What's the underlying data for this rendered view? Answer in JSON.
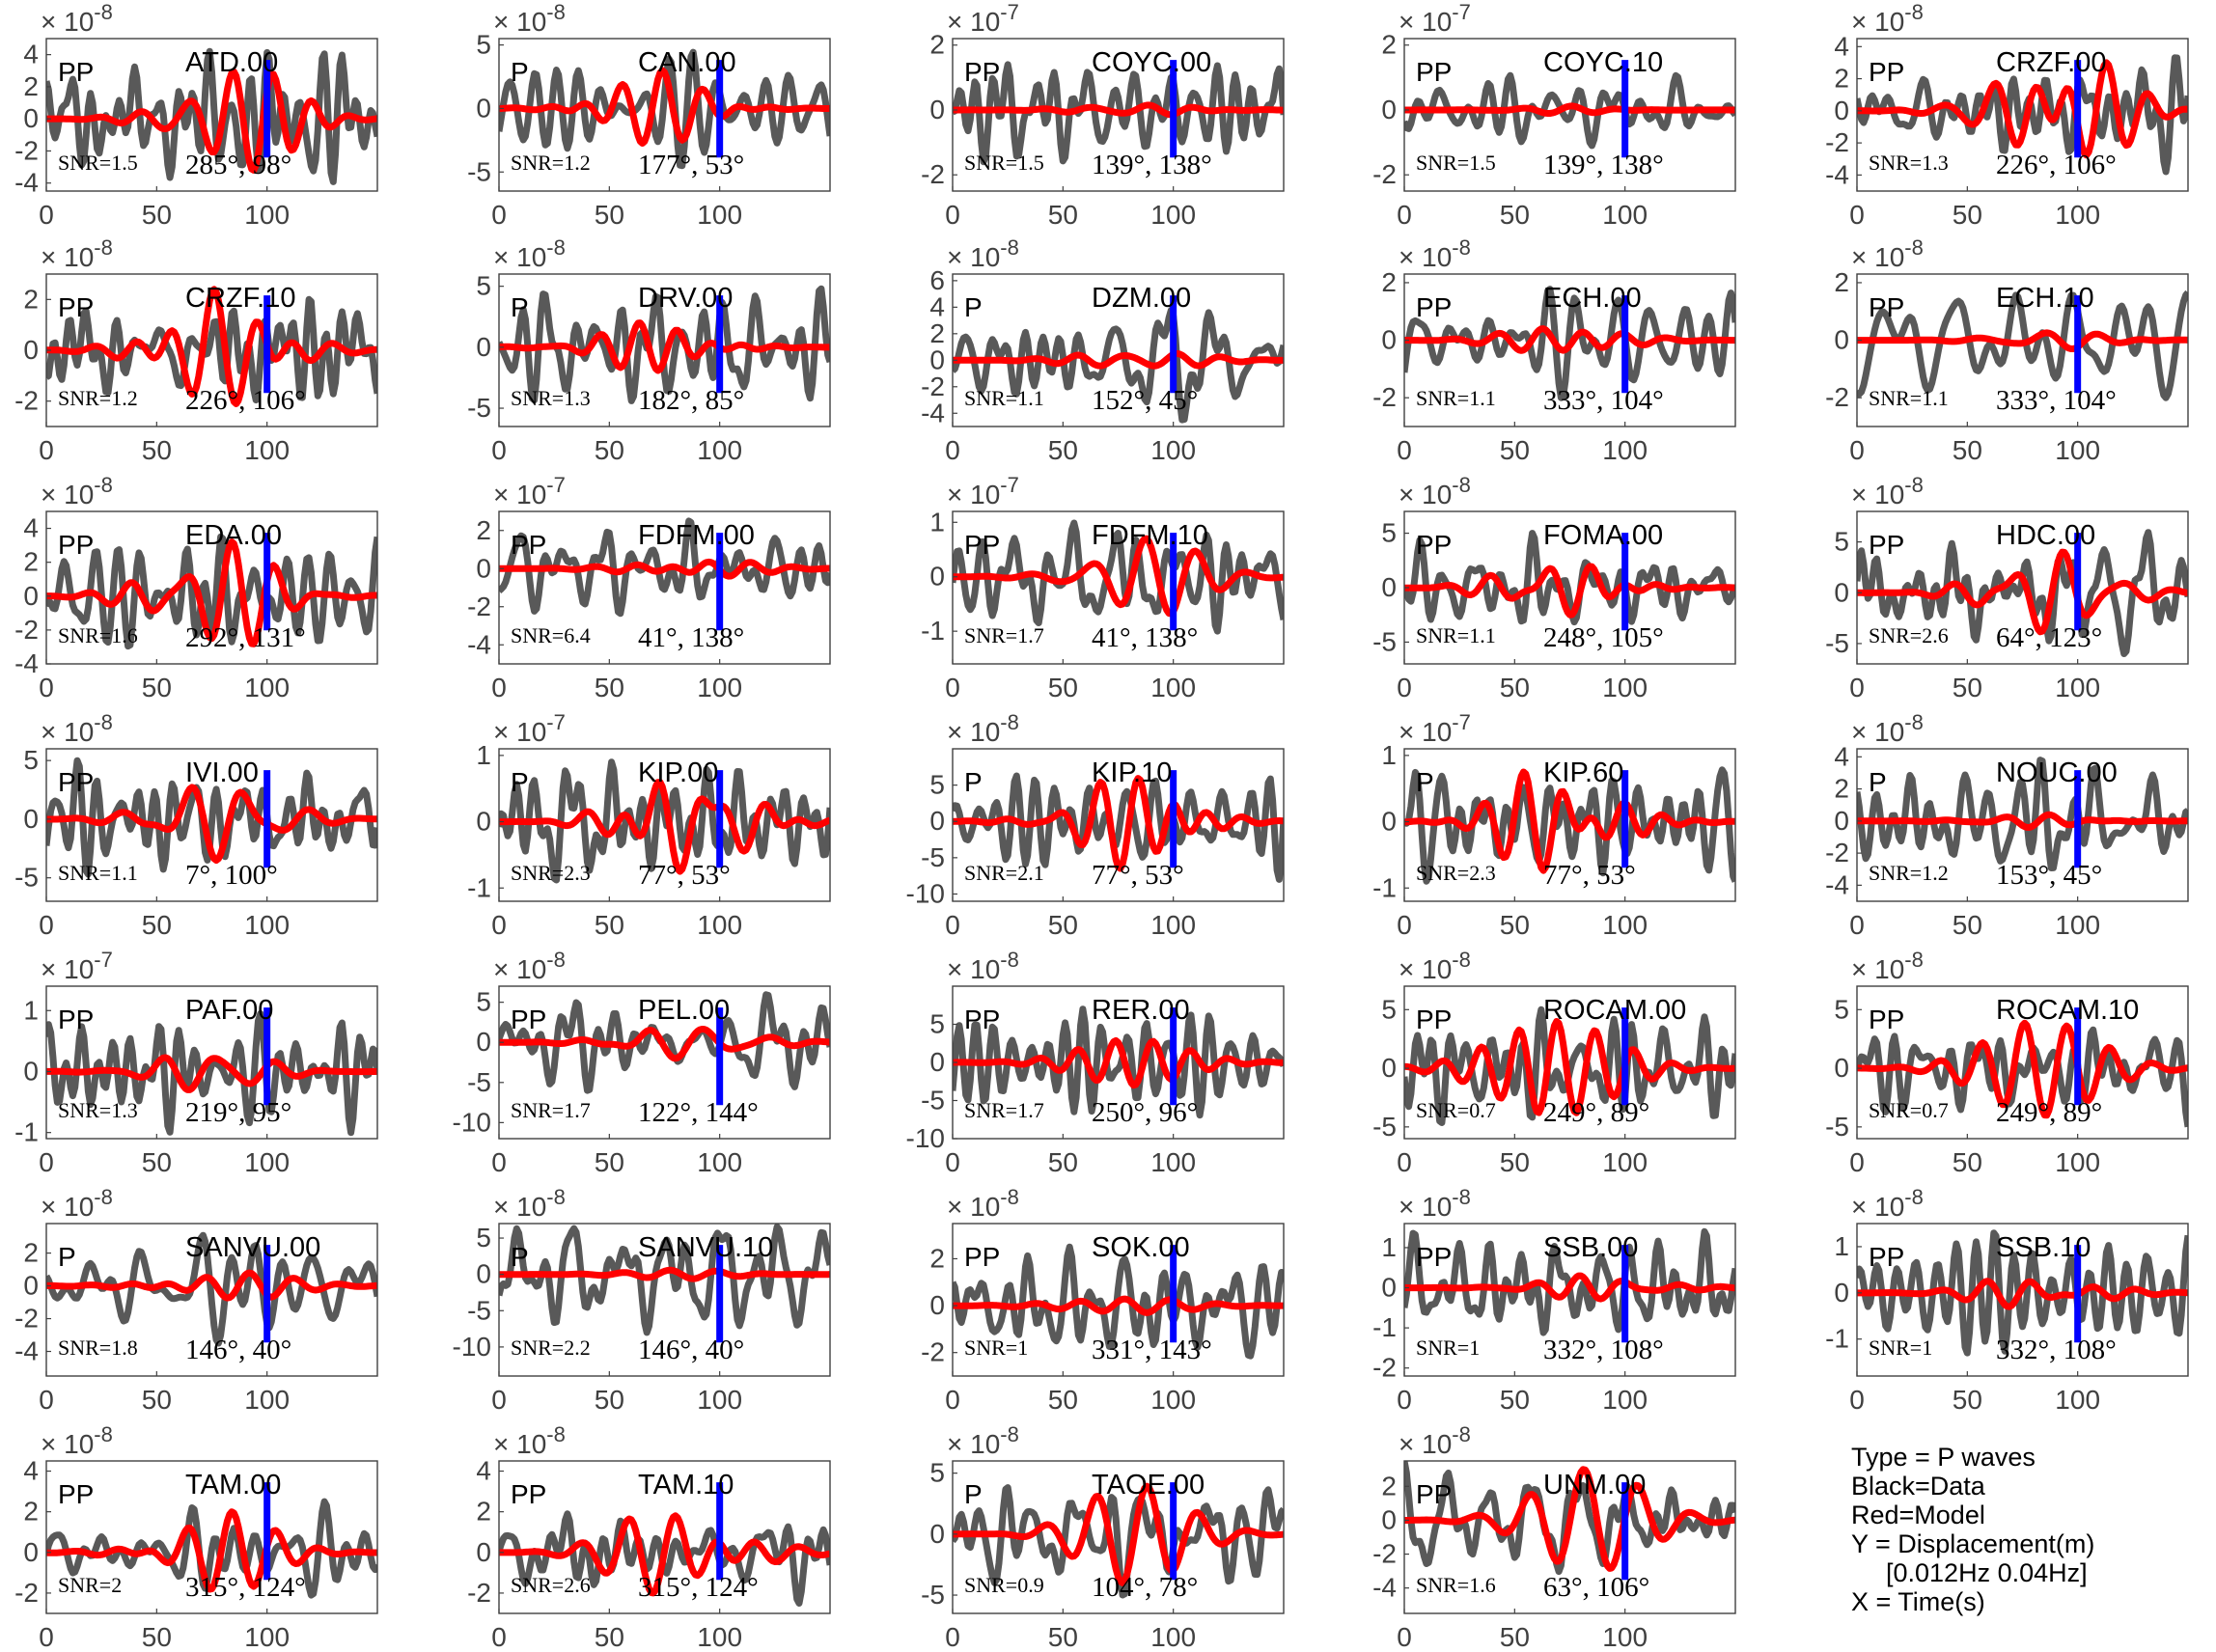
{
  "chart_data": {
    "type": "line",
    "xlim": [
      0,
      150
    ],
    "xticks": [
      0,
      50,
      100
    ],
    "pick_time": 100,
    "colors": {
      "data": "#595959",
      "model": "#ff0000",
      "pick": "#0000ff",
      "axes": "#404040"
    },
    "panels": [
      {
        "station": "ATD.00",
        "phase": "PP",
        "snr": "SNR=1.5",
        "angles": "285°, 98°",
        "exponent": "-8",
        "yticks": [
          "4",
          "2",
          "0",
          "-2",
          "-4"
        ],
        "ylim": [
          -4.5,
          5
        ],
        "seed": 1,
        "data_amp": 4.2,
        "model_amp": 3.2
      },
      {
        "station": "CAN.00",
        "phase": "P",
        "snr": "SNR=1.2",
        "angles": "177°, 53°",
        "exponent": "-8",
        "yticks": [
          "5",
          "0",
          "-5"
        ],
        "ylim": [
          -6.5,
          5.5
        ],
        "seed": 2,
        "data_amp": 4.5,
        "model_amp": 3.0
      },
      {
        "station": "COYC.00",
        "phase": "PP",
        "snr": "SNR=1.5",
        "angles": "139°, 138°",
        "exponent": "-7",
        "yticks": [
          "2",
          "0",
          "-2"
        ],
        "ylim": [
          -2.5,
          2.2
        ],
        "seed": 3,
        "data_amp": 1.6,
        "model_amp": 0.15
      },
      {
        "station": "COYC.10",
        "phase": "PP",
        "snr": "SNR=1.5",
        "angles": "139°, 138°",
        "exponent": "-7",
        "yticks": [
          "2",
          "0",
          "-2"
        ],
        "ylim": [
          -2.5,
          2.2
        ],
        "seed": 4,
        "data_amp": 1.1,
        "model_amp": 0.12
      },
      {
        "station": "CRZF.00",
        "phase": "PP",
        "snr": "SNR=1.3",
        "angles": "226°, 106°",
        "exponent": "-8",
        "yticks": [
          "4",
          "2",
          "0",
          "-2",
          "-4"
        ],
        "ylim": [
          -5,
          4.5
        ],
        "seed": 5,
        "data_amp": 3.8,
        "model_amp": 3.0
      },
      {
        "station": "CRZF.10",
        "phase": "PP",
        "snr": "SNR=1.2",
        "angles": "226°, 106°",
        "exponent": "-8",
        "yticks": [
          "2",
          "0",
          "-2"
        ],
        "ylim": [
          -3,
          3
        ],
        "seed": 6,
        "data_amp": 2.0,
        "model_amp": 2.4
      },
      {
        "station": "DRV.00",
        "phase": "P",
        "snr": "SNR=1.3",
        "angles": "182°, 85°",
        "exponent": "-8",
        "yticks": [
          "5",
          "0",
          "-5"
        ],
        "ylim": [
          -6.5,
          6
        ],
        "seed": 7,
        "data_amp": 4.8,
        "model_amp": 2.0
      },
      {
        "station": "DZM.00",
        "phase": "P",
        "snr": "SNR=1.1",
        "angles": "152°, 45°",
        "exponent": "-8",
        "yticks": [
          "6",
          "4",
          "2",
          "0",
          "-2",
          "-4"
        ],
        "ylim": [
          -5,
          6.5
        ],
        "seed": 8,
        "data_amp": 4.5,
        "model_amp": 0.5
      },
      {
        "station": "ECH.00",
        "phase": "PP",
        "snr": "SNR=1.1",
        "angles": "333°, 104°",
        "exponent": "-8",
        "yticks": [
          "2",
          "0",
          "-2"
        ],
        "ylim": [
          -3,
          2.3
        ],
        "seed": 9,
        "data_amp": 2.0,
        "model_amp": 0.4
      },
      {
        "station": "ECH.10",
        "phase": "PP",
        "snr": "SNR=1.1",
        "angles": "333°, 104°",
        "exponent": "-8",
        "yticks": [
          "2",
          "0",
          "-2"
        ],
        "ylim": [
          -3,
          2.3
        ],
        "seed": 10,
        "data_amp": 2.0,
        "model_amp": 0.3
      },
      {
        "station": "EDA.00",
        "phase": "PP",
        "snr": "SNR=1.6",
        "angles": "292°, 131°",
        "exponent": "-8",
        "yticks": [
          "4",
          "2",
          "0",
          "-2",
          "-4"
        ],
        "ylim": [
          -4,
          5
        ],
        "seed": 11,
        "data_amp": 3.5,
        "model_amp": 3.2
      },
      {
        "station": "FDFM.00",
        "phase": "PP",
        "snr": "SNR=6.4",
        "angles": "41°, 138°",
        "exponent": "-7",
        "yticks": [
          "2",
          "0",
          "-2",
          "-4"
        ],
        "ylim": [
          -5,
          3
        ],
        "seed": 12,
        "data_amp": 2.5,
        "model_amp": 0.4
      },
      {
        "station": "FDFM.10",
        "phase": "PP",
        "snr": "SNR=1.7",
        "angles": "41°, 138°",
        "exponent": "-7",
        "yticks": [
          "1",
          "0",
          "-1"
        ],
        "ylim": [
          -1.6,
          1.2
        ],
        "seed": 13,
        "data_amp": 1.0,
        "model_amp": 0.7
      },
      {
        "station": "FOMA.00",
        "phase": "PP",
        "snr": "SNR=1.1",
        "angles": "248°, 105°",
        "exponent": "-8",
        "yticks": [
          "5",
          "0",
          "-5"
        ],
        "ylim": [
          -7,
          7
        ],
        "seed": 14,
        "data_amp": 5.0,
        "model_amp": 2.5
      },
      {
        "station": "HDC.00",
        "phase": "PP",
        "snr": "SNR=2.6",
        "angles": "64°, 123°",
        "exponent": "-8",
        "yticks": [
          "5",
          "0",
          "-5"
        ],
        "ylim": [
          -7,
          8
        ],
        "seed": 15,
        "data_amp": 6.0,
        "model_amp": 4.0
      },
      {
        "station": "IVI.00",
        "phase": "PP",
        "snr": "SNR=1.1",
        "angles": "7°, 100°",
        "exponent": "-8",
        "yticks": [
          "5",
          "0",
          "-5"
        ],
        "ylim": [
          -7,
          6
        ],
        "seed": 16,
        "data_amp": 5.0,
        "model_amp": 3.5
      },
      {
        "station": "KIP.00",
        "phase": "P",
        "snr": "SNR=2.3",
        "angles": "77°, 53°",
        "exponent": "-7",
        "yticks": [
          "1",
          "0",
          "-1"
        ],
        "ylim": [
          -1.2,
          1.1
        ],
        "seed": 17,
        "data_amp": 0.9,
        "model_amp": 0.75
      },
      {
        "station": "KIP.10",
        "phase": "P",
        "snr": "SNR=2.1",
        "angles": "77°, 53°",
        "exponent": "-8",
        "yticks": [
          "5",
          "0",
          "-5",
          "-10"
        ],
        "ylim": [
          -11,
          10
        ],
        "seed": 18,
        "data_amp": 8.0,
        "model_amp": 6.5
      },
      {
        "station": "KIP.60",
        "phase": "P",
        "snr": "SNR=2.3",
        "angles": "77°, 53°",
        "exponent": "-7",
        "yticks": [
          "1",
          "0",
          "-1"
        ],
        "ylim": [
          -1.2,
          1.1
        ],
        "seed": 19,
        "data_amp": 0.9,
        "model_amp": 0.75
      },
      {
        "station": "NOUC.00",
        "phase": "P",
        "snr": "SNR=1.2",
        "angles": "153°, 45°",
        "exponent": "-8",
        "yticks": [
          "4",
          "2",
          "0",
          "-2",
          "-4"
        ],
        "ylim": [
          -5,
          4.5
        ],
        "seed": 20,
        "data_amp": 3.8,
        "model_amp": 0.4
      },
      {
        "station": "PAF.00",
        "phase": "PP",
        "snr": "SNR=1.3",
        "angles": "219°, 95°",
        "exponent": "-7",
        "yticks": [
          "1",
          "0",
          "-1"
        ],
        "ylim": [
          -1.1,
          1.4
        ],
        "seed": 21,
        "data_amp": 1.0,
        "model_amp": 0.3
      },
      {
        "station": "PEL.00",
        "phase": "PP",
        "snr": "SNR=1.7",
        "angles": "122°, 144°",
        "exponent": "-8",
        "yticks": [
          "5",
          "0",
          "-5",
          "-10"
        ],
        "ylim": [
          -12,
          7
        ],
        "seed": 22,
        "data_amp": 6.0,
        "model_amp": 2.0
      },
      {
        "station": "RER.00",
        "phase": "PP",
        "snr": "SNR=1.7",
        "angles": "250°, 96°",
        "exponent": "-8",
        "yticks": [
          "5",
          "0",
          "-5",
          "-10"
        ],
        "ylim": [
          -10,
          10
        ],
        "seed": 23,
        "data_amp": 7.0,
        "model_amp": 3.0
      },
      {
        "station": "ROCAM.00",
        "phase": "PP",
        "snr": "SNR=0.7",
        "angles": "249°, 89°",
        "exponent": "-8",
        "yticks": [
          "5",
          "0",
          "-5"
        ],
        "ylim": [
          -6,
          7
        ],
        "seed": 24,
        "data_amp": 5.0,
        "model_amp": 4.0
      },
      {
        "station": "ROCAM.10",
        "phase": "PP",
        "snr": "SNR=0.7",
        "angles": "249°, 89°",
        "exponent": "-8",
        "yticks": [
          "5",
          "0",
          "-5"
        ],
        "ylim": [
          -6,
          7
        ],
        "seed": 25,
        "data_amp": 5.0,
        "model_amp": 4.0
      },
      {
        "station": "SANVU.00",
        "phase": "P",
        "snr": "SNR=1.8",
        "angles": "146°, 40°",
        "exponent": "-8",
        "yticks": [
          "2",
          "0",
          "-2",
          "-4"
        ],
        "ylim": [
          -5.5,
          3.8
        ],
        "seed": 26,
        "data_amp": 3.5,
        "model_amp": 0.8
      },
      {
        "station": "SANVU.10",
        "phase": "P",
        "snr": "SNR=2.2",
        "angles": "146°, 40°",
        "exponent": "-8",
        "yticks": [
          "5",
          "0",
          "-5",
          "-10"
        ],
        "ylim": [
          -14,
          7
        ],
        "seed": 27,
        "data_amp": 8.0,
        "model_amp": 0.6
      },
      {
        "station": "SOK.00",
        "phase": "PP",
        "snr": "SNR=1",
        "angles": "331°, 143°",
        "exponent": "-8",
        "yticks": [
          "2",
          "0",
          "-2"
        ],
        "ylim": [
          -3,
          3.5
        ],
        "seed": 28,
        "data_amp": 2.5,
        "model_amp": 0.3
      },
      {
        "station": "SSB.00",
        "phase": "PP",
        "snr": "SNR=1",
        "angles": "332°, 108°",
        "exponent": "-8",
        "yticks": [
          "1",
          "0",
          "-1",
          "-2"
        ],
        "ylim": [
          -2.2,
          1.6
        ],
        "seed": 29,
        "data_amp": 1.4,
        "model_amp": 0.3
      },
      {
        "station": "SSB.10",
        "phase": "PP",
        "snr": "SNR=1",
        "angles": "332°, 108°",
        "exponent": "-8",
        "yticks": [
          "1",
          "0",
          "-1"
        ],
        "ylim": [
          -1.8,
          1.5
        ],
        "seed": 30,
        "data_amp": 1.3,
        "model_amp": 0.3
      },
      {
        "station": "TAM.00",
        "phase": "PP",
        "snr": "SNR=2",
        "angles": "315°, 124°",
        "exponent": "-8",
        "yticks": [
          "4",
          "2",
          "0",
          "-2"
        ],
        "ylim": [
          -3,
          4.5
        ],
        "seed": 31,
        "data_amp": 2.5,
        "model_amp": 2.0
      },
      {
        "station": "TAM.10",
        "phase": "PP",
        "snr": "SNR=2.6",
        "angles": "315°, 124°",
        "exponent": "-8",
        "yticks": [
          "4",
          "2",
          "0",
          "-2"
        ],
        "ylim": [
          -3,
          4.5
        ],
        "seed": 32,
        "data_amp": 2.5,
        "model_amp": 2.0
      },
      {
        "station": "TAOE.00",
        "phase": "P",
        "snr": "SNR=0.9",
        "angles": "104°, 78°",
        "exponent": "-8",
        "yticks": [
          "5",
          "0",
          "-5"
        ],
        "ylim": [
          -6.5,
          6
        ],
        "seed": 33,
        "data_amp": 5.0,
        "model_amp": 4.0
      },
      {
        "station": "UNM.00",
        "phase": "PP",
        "snr": "SNR=1.6",
        "angles": "63°, 106°",
        "exponent": "-8",
        "yticks": [
          "2",
          "0",
          "-2",
          "-4"
        ],
        "ylim": [
          -5.5,
          3.5
        ],
        "seed": 34,
        "data_amp": 3.5,
        "model_amp": 3.0
      }
    ],
    "legend": [
      "Type = P waves",
      "Black=Data",
      "Red=Model",
      "Y = Displacement(m)",
      "[0.012Hz 0.04Hz]",
      "X = Time(s)"
    ]
  }
}
